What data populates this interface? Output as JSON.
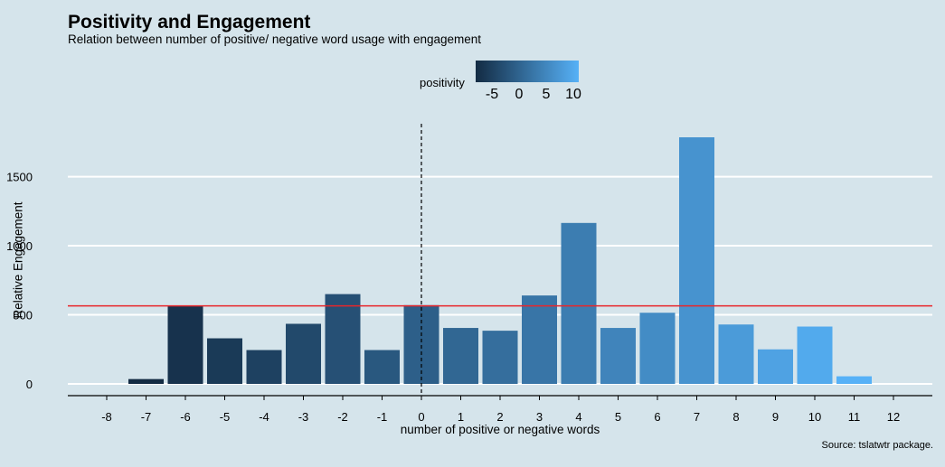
{
  "chart_data": {
    "type": "bar",
    "title": "Positivity and Engagement",
    "subtitle": "Relation between number of positive/ negative word usage with engagement",
    "caption": "Source: tslatwtr package.",
    "xlabel": "number of positive or negative words",
    "ylabel": "Relative Engagement",
    "categories": [
      -8,
      -7,
      -6,
      -5,
      -4,
      -3,
      -2,
      -1,
      0,
      1,
      2,
      3,
      4,
      5,
      6,
      7,
      8,
      9,
      10,
      11,
      12
    ],
    "values": [
      0,
      35,
      565,
      330,
      245,
      435,
      650,
      245,
      570,
      405,
      385,
      640,
      1165,
      405,
      515,
      1785,
      430,
      250,
      415,
      55,
      0
    ],
    "ylim": [
      -90,
      1880
    ],
    "yticks": [
      0,
      500,
      1000,
      1500
    ],
    "reference_line_h": 565,
    "reference_line_h_color": "#e8262b",
    "reference_line_v": 0,
    "fill_scale": {
      "name": "positivity",
      "low": "#132b43",
      "high": "#56b1f7",
      "min": -7,
      "max": 11,
      "ticks": [
        -5,
        0,
        5,
        10
      ]
    },
    "grid": true,
    "legend_position": "top"
  }
}
